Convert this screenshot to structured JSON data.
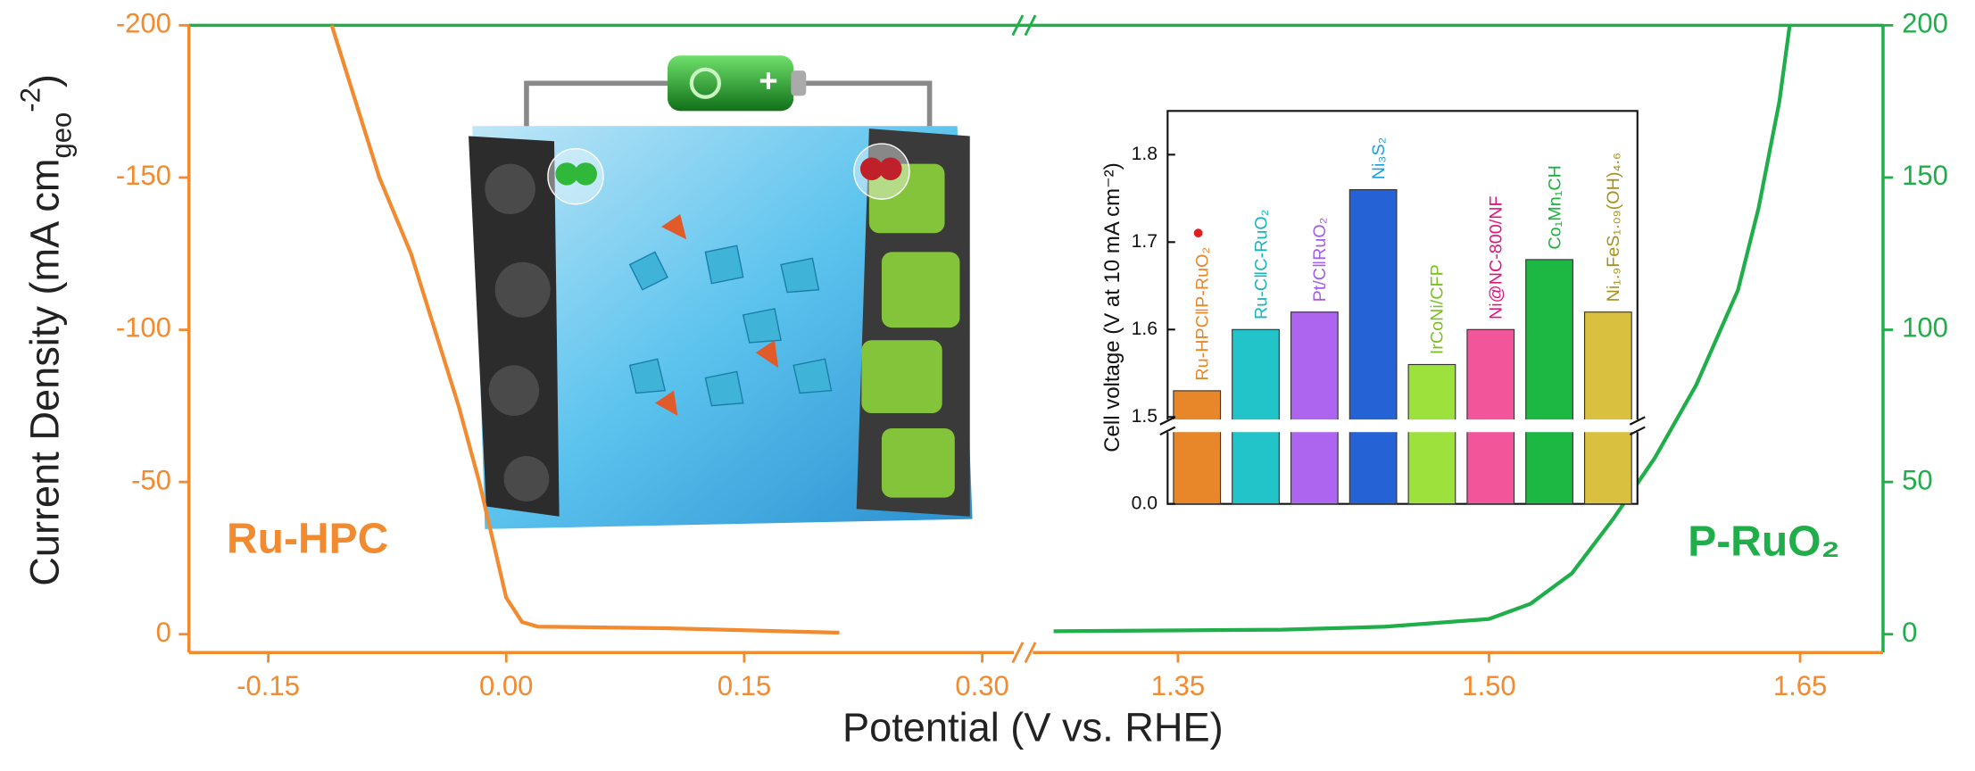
{
  "chart_data": [
    {
      "type": "line",
      "ylabel_parts": [
        {
          "text": "Current Density (mA  cm"
        },
        {
          "text": "geo",
          "sub": true
        },
        {
          "text": "-2",
          "sup": true
        },
        {
          "text": ")"
        }
      ],
      "xlabel": "Potential (V vs. RHE)",
      "xlim_segments": [
        [
          -0.2,
          0.32
        ],
        [
          1.28,
          1.69
        ]
      ],
      "xticks_segments": [
        [
          -0.15,
          {
            "value": 0,
            "label": "0.00"
          },
          0.15,
          {
            "value": 0.3,
            "label": "0.30"
          }
        ],
        [
          1.35,
          {
            "value": 1.5,
            "label": "1.50"
          },
          1.65
        ]
      ],
      "ylim": [
        6,
        -200
      ],
      "yticks": [
        0,
        -50,
        -100,
        -150,
        -200
      ],
      "ycolor": "#f28a30",
      "y2lim": [
        -6,
        200
      ],
      "y2ticks": [
        0,
        50,
        100,
        150,
        200
      ],
      "y2color": "#1fae4a",
      "series": [
        {
          "name": "Ru-HPC",
          "color": "#f28a30",
          "axis": "y",
          "x": [
            -0.11,
            -0.095,
            -0.08,
            -0.06,
            -0.045,
            -0.03,
            -0.017,
            -0.008,
            0.0,
            0.01,
            0.02,
            0.1,
            0.21
          ],
          "values": [
            -200,
            -175,
            -150,
            -125,
            -100,
            -75,
            -50,
            -30,
            -12,
            -4,
            -2.5,
            -2,
            -0.5
          ]
        },
        {
          "name": "P-RuO₂",
          "color": "#1fae4a",
          "axis": "y2",
          "x": [
            1.29,
            1.4,
            1.45,
            1.5,
            1.52,
            1.54,
            1.56,
            1.58,
            1.6,
            1.62,
            1.63,
            1.64,
            1.645
          ],
          "values": [
            1,
            1.5,
            2.5,
            5,
            10,
            20,
            38,
            58,
            82,
            113,
            140,
            175,
            200
          ]
        }
      ]
    },
    {
      "type": "bar",
      "ylabel": "Cell voltage (V at 10 mA cm⁻²)",
      "categories": [
        "Ru-HPC‖P-RuO₂",
        "Ru-C‖C-RuO₂",
        "Pt/C‖RuO₂",
        "Ni₃S₂",
        "IrCoNi/CFP",
        "Ni@NC-800/NF",
        "Co₁Mn₁CH",
        "Ni₁.₉FeS₁.₀₉(OH)₄.₆"
      ],
      "values": [
        1.53,
        1.6,
        1.62,
        1.76,
        1.56,
        1.6,
        1.68,
        1.62
      ],
      "colors": [
        "#e8862a",
        "#22c3c9",
        "#ad64ee",
        "#2462d6",
        "#9de23c",
        "#f2559a",
        "#1db844",
        "#d9c03e"
      ],
      "label_colors": [
        "#e8862a",
        "#17b5bb",
        "#a35de8",
        "#1a9ee0",
        "#7ac020",
        "#e0157a",
        "#19b23d",
        "#a8901a"
      ],
      "ylim": [
        0,
        1.85
      ],
      "yticks": [
        {
          "value": 0,
          "label": "0.0"
        },
        1.5,
        1.6,
        1.7,
        1.8
      ],
      "axis_break": true
    }
  ]
}
